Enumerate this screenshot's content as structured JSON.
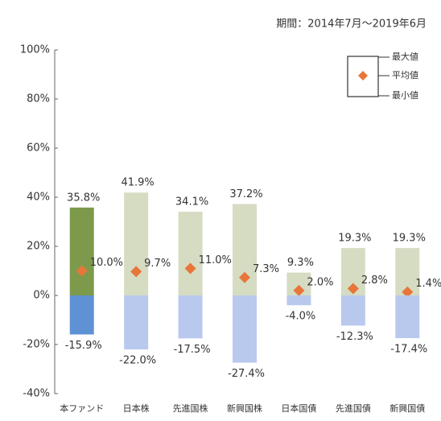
{
  "chart_data": {
    "type": "bar",
    "subtitle": "期間：2014年7月～2019年6月",
    "categories": [
      "本ファンド",
      "日本株",
      "先進国株",
      "新興国株",
      "日本国債",
      "先進国債",
      "新興国債"
    ],
    "series": [
      {
        "name": "最大値",
        "colors": [
          "#7d9a4c",
          "#d5dcc2",
          "#d5dcc2",
          "#d5dcc2",
          "#d5dcc2",
          "#d5dcc2",
          "#d5dcc2"
        ],
        "values": [
          35.8,
          41.9,
          34.1,
          37.2,
          9.3,
          19.3,
          19.3
        ],
        "value_labels": [
          "35.8%",
          "41.9%",
          "34.1%",
          "37.2%",
          "9.3%",
          "19.3%",
          "19.3%"
        ]
      },
      {
        "name": "平均値",
        "color": "#e8763a",
        "values": [
          10.0,
          9.7,
          11.0,
          7.3,
          2.0,
          2.8,
          1.4
        ],
        "value_labels": [
          "10.0%",
          "9.7%",
          "11.0%",
          "7.3%",
          "2.0%",
          "2.8%",
          "1.4%"
        ]
      },
      {
        "name": "最小値",
        "colors": [
          "#5f92d4",
          "#b9c9ee",
          "#b9c9ee",
          "#b9c9ee",
          "#b9c9ee",
          "#b9c9ee",
          "#b9c9ee"
        ],
        "values": [
          -15.9,
          -22.0,
          -17.5,
          -27.4,
          -4.0,
          -12.3,
          -17.4
        ],
        "value_labels": [
          "-15.9%",
          "-22.0%",
          "-17.5%",
          "-27.4%",
          "-4.0%",
          "-12.3%",
          "-17.4%"
        ]
      }
    ],
    "ylim": [
      -40,
      100
    ],
    "yticks": [
      {
        "value": -40,
        "label": "-40%"
      },
      {
        "value": -20,
        "label": "-20%"
      },
      {
        "value": 0,
        "label": "0%"
      },
      {
        "value": 20,
        "label": "20%"
      },
      {
        "value": 40,
        "label": "40%"
      },
      {
        "value": 60,
        "label": "60%"
      },
      {
        "value": 80,
        "label": "80%"
      },
      {
        "value": 100,
        "label": "100%"
      }
    ],
    "grid": false,
    "legend": "upper right"
  }
}
